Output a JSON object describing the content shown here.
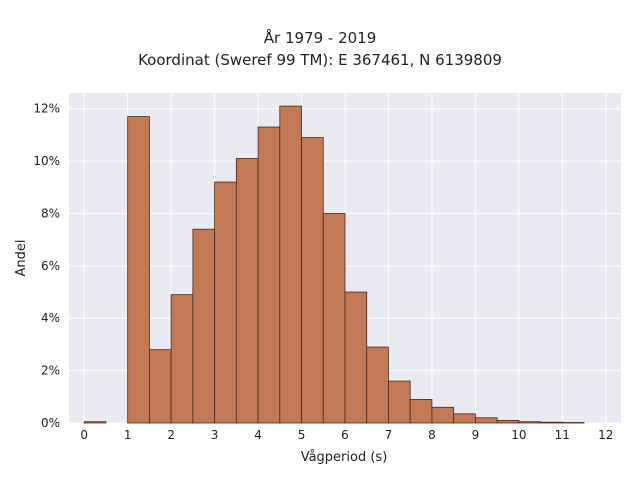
{
  "figure": {
    "title_line1": "År 1979 - 2019",
    "title_line2": "Koordinat (Sweref 99 TM): E 367461, N 6139809"
  },
  "chart_data": {
    "type": "bar",
    "title": "År 1979 - 2019\nKoordinat (Sweref 99 TM): E 367461, N 6139809",
    "xlabel": "Vågperiod (s)",
    "ylabel": "Andel",
    "bin_width": 0.5,
    "bins_start": [
      0,
      0.5,
      1,
      1.5,
      2,
      2.5,
      3,
      3.5,
      4,
      4.5,
      5,
      5.5,
      6,
      6.5,
      7,
      7.5,
      8,
      8.5,
      9,
      9.5,
      10,
      10.5,
      11,
      11.5
    ],
    "values": [
      0.05,
      0,
      11.7,
      2.8,
      4.9,
      7.4,
      9.2,
      10.1,
      11.3,
      12.1,
      10.9,
      8.0,
      5.0,
      2.9,
      1.6,
      0.9,
      0.6,
      0.35,
      0.2,
      0.1,
      0.05,
      0.03,
      0.02,
      0
    ],
    "value_unit": "%",
    "xlim": [
      -0.35,
      12.35
    ],
    "ylim": [
      0,
      12.6
    ],
    "xticks": [
      0,
      1,
      2,
      3,
      4,
      5,
      6,
      7,
      8,
      9,
      10,
      11,
      12
    ],
    "xtick_labels": [
      "0",
      "1",
      "2",
      "3",
      "4",
      "5",
      "6",
      "7",
      "8",
      "9",
      "10",
      "11",
      "12"
    ],
    "yticks": [
      0,
      2,
      4,
      6,
      8,
      10,
      12
    ],
    "ytick_labels": [
      "0%",
      "2%",
      "4%",
      "6%",
      "8%",
      "10%",
      "12%"
    ],
    "grid": true,
    "colors": {
      "bar_fill": "#c17a55",
      "bar_edge": "#4a2a1c",
      "plot_background": "#eaeaf2",
      "grid": "#ffffff"
    }
  }
}
